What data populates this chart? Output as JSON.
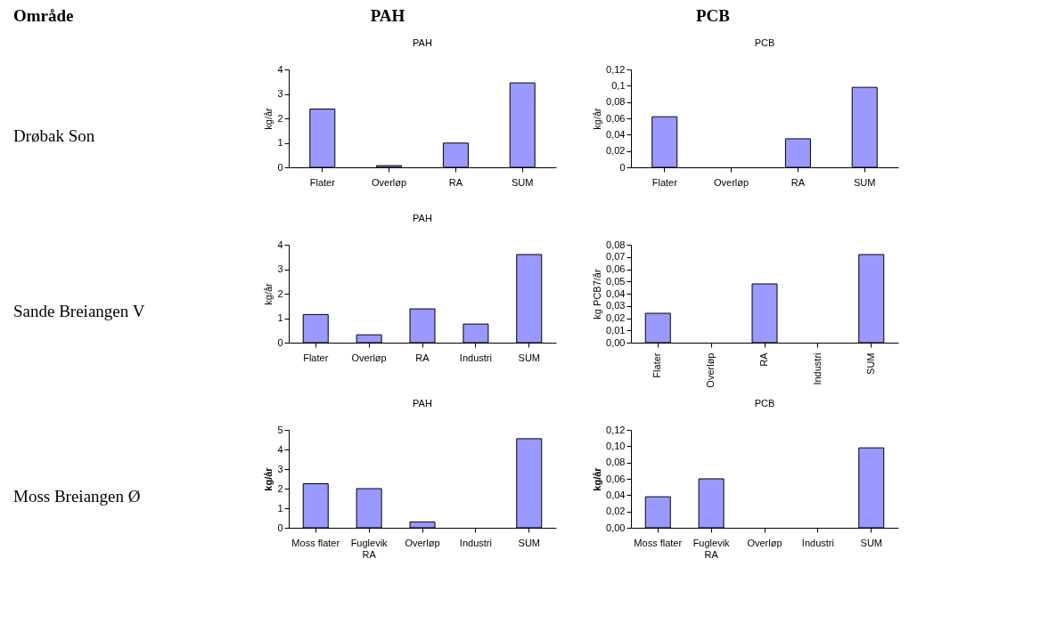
{
  "chart_data": [
    {
      "type": "bar",
      "title": "PAH",
      "ylabel": "kg/år",
      "annotations": [
        "Område",
        "PAH",
        "Drøbak Son"
      ],
      "categories": [
        "Flater",
        "Overløp",
        "RA",
        "SUM"
      ],
      "values": [
        2.38,
        0.07,
        0.99,
        3.45
      ],
      "color": "#9999ff",
      "ylim": [
        0,
        4
      ],
      "yticks": [
        0,
        1,
        2,
        3,
        4
      ],
      "grid": false
    },
    {
      "type": "bar",
      "title": "PCB",
      "ylabel": "kg/år",
      "annotations": [
        "PCB"
      ],
      "categories": [
        "Flater",
        "Overløp",
        "RA",
        "SUM"
      ],
      "values": [
        0.062,
        null,
        0.035,
        0.098
      ],
      "color": "#9999ff",
      "ylim": [
        0,
        0.12
      ],
      "yticks": [
        0,
        {
          "value": 0.02,
          "label": "0,02"
        },
        {
          "value": 0.04,
          "label": "0,04"
        },
        {
          "value": 0.06,
          "label": "0,06"
        },
        {
          "value": 0.08,
          "label": "0,08"
        },
        {
          "value": 0.1,
          "label": "0,1"
        },
        {
          "value": 0.12,
          "label": "0,12"
        }
      ],
      "grid": false
    },
    {
      "type": "bar",
      "title": "PAH",
      "ylabel": "kg/år",
      "annotations": [
        "Sande Breiangen V"
      ],
      "categories": [
        "Flater",
        "Overløp",
        "RA",
        "Industri",
        "SUM"
      ],
      "values": [
        1.15,
        0.32,
        1.38,
        0.76,
        3.6
      ],
      "color": "#9999ff",
      "ylim": [
        0,
        4
      ],
      "yticks": [
        0,
        1,
        2,
        3,
        4
      ],
      "grid": false
    },
    {
      "type": "bar",
      "ylabel": "kg PCB7/år",
      "categories": [
        "Flater",
        "Overløp",
        "RA",
        "Industri",
        "SUM"
      ],
      "values": [
        0.024,
        null,
        0.048,
        null,
        0.072
      ],
      "color": "#9999ff",
      "ylim": [
        0,
        0.08
      ],
      "yticks": [
        {
          "value": 0,
          "label": "0,00"
        },
        {
          "value": 0.01,
          "label": "0,01"
        },
        {
          "value": 0.02,
          "label": "0,02"
        },
        {
          "value": 0.03,
          "label": "0,03"
        },
        {
          "value": 0.04,
          "label": "0,04"
        },
        {
          "value": 0.05,
          "label": "0,05"
        },
        {
          "value": 0.06,
          "label": "0,06"
        },
        {
          "value": 0.07,
          "label": "0,07"
        },
        {
          "value": 0.08,
          "label": "0,08"
        }
      ],
      "grid": false
    },
    {
      "type": "bar",
      "title": "PAH",
      "ylabel": "kg/år",
      "annotations": [
        "Moss Breiangen Ø"
      ],
      "categories": [
        "Moss flater",
        "Fuglevik\nRA",
        "Overløp",
        "Industri",
        "SUM"
      ],
      "values": [
        2.25,
        2.0,
        0.3,
        null,
        4.55
      ],
      "color": "#9999ff",
      "ylim": [
        0,
        5
      ],
      "yticks": [
        0,
        1,
        2,
        3,
        4,
        5
      ],
      "grid": false
    },
    {
      "type": "bar",
      "title": "PCB",
      "ylabel": "kg/år",
      "categories": [
        "Moss flater",
        "Fuglevik\nRA",
        "Overløp",
        "Industri",
        "SUM"
      ],
      "values": [
        0.038,
        0.06,
        null,
        null,
        0.098
      ],
      "color": "#9999ff",
      "ylim": [
        0,
        0.12
      ],
      "yticks": [
        {
          "value": 0,
          "label": "0,00"
        },
        {
          "value": 0.02,
          "label": "0,02"
        },
        {
          "value": 0.04,
          "label": "0,04"
        },
        {
          "value": 0.06,
          "label": "0,06"
        },
        {
          "value": 0.08,
          "label": "0,08"
        },
        {
          "value": 0.1,
          "label": "0,10"
        },
        {
          "value": 0.12,
          "label": "0,12"
        }
      ],
      "grid": false
    }
  ]
}
